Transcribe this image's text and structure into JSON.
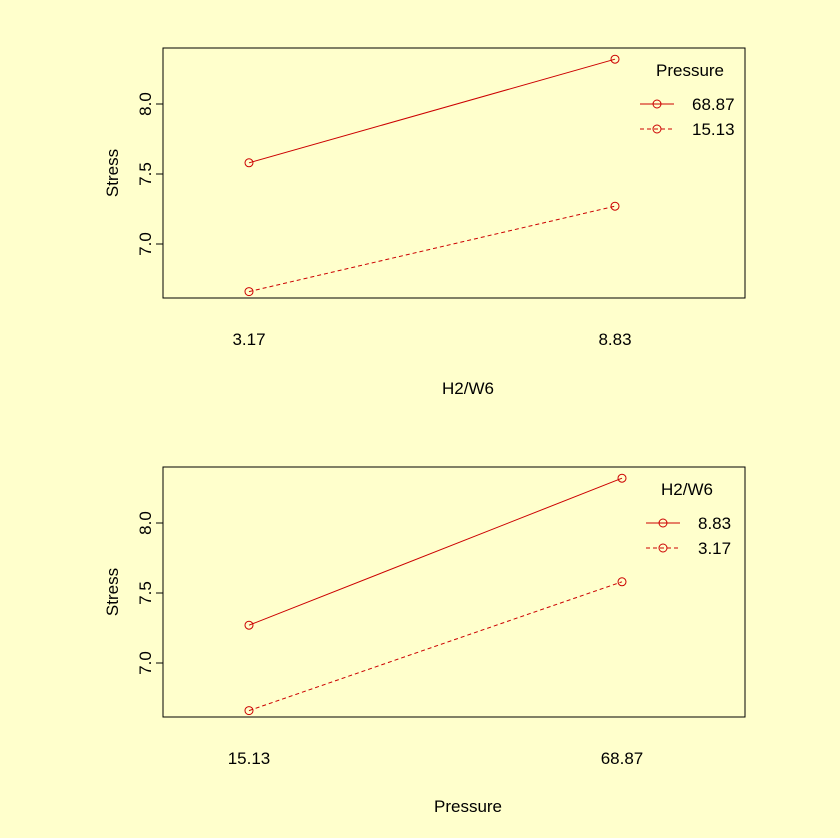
{
  "chart_data": [
    {
      "type": "line",
      "xlabel": "H2/W6",
      "ylabel": "Stress",
      "categories": [
        "3.17",
        "8.83"
      ],
      "yticks": [
        "7.0",
        "7.5",
        "8.0"
      ],
      "ylim": [
        6.6,
        8.5
      ],
      "legend_title": "Pressure",
      "legend_position": "top-right",
      "series": [
        {
          "name": "68.87",
          "values": [
            7.58,
            8.32
          ],
          "line": "solid",
          "color": "#cc0000"
        },
        {
          "name": "15.13",
          "values": [
            6.66,
            7.27
          ],
          "line": "dashed",
          "color": "#cc0000"
        }
      ]
    },
    {
      "type": "line",
      "xlabel": "Pressure",
      "ylabel": "Stress",
      "categories": [
        "15.13",
        "68.87"
      ],
      "yticks": [
        "7.0",
        "7.5",
        "8.0"
      ],
      "ylim": [
        6.6,
        8.5
      ],
      "legend_title": "H2/W6",
      "legend_position": "top-right",
      "series": [
        {
          "name": "8.83",
          "values": [
            7.27,
            8.32
          ],
          "line": "solid",
          "color": "#cc0000"
        },
        {
          "name": "3.17",
          "values": [
            6.66,
            7.58
          ],
          "line": "dashed",
          "color": "#cc0000"
        }
      ]
    }
  ]
}
